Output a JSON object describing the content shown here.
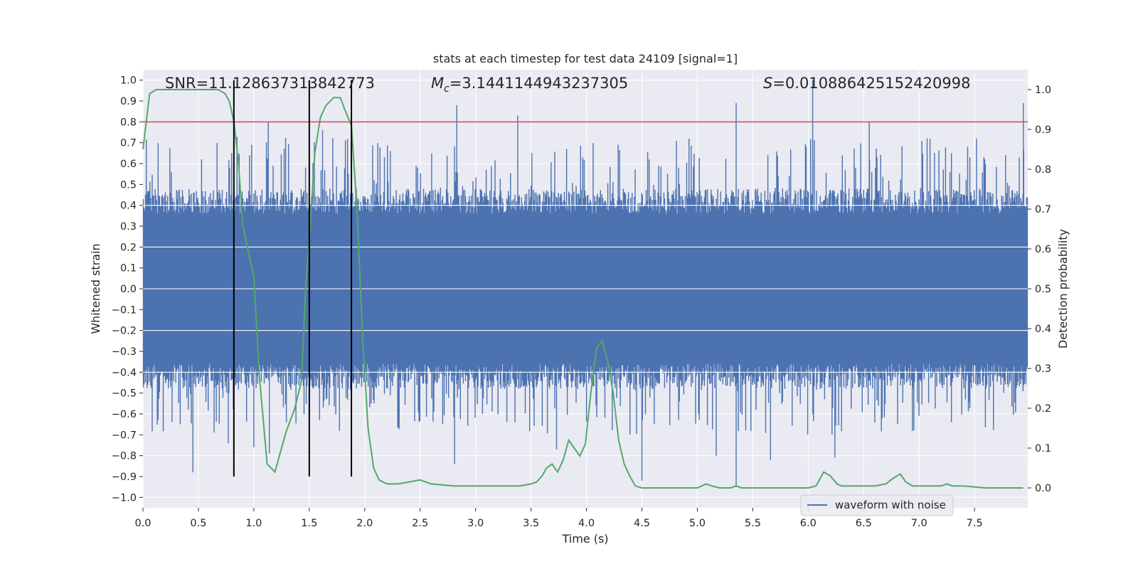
{
  "chart_data": {
    "type": "line",
    "title": "stats at each timestep for test data 24109 [signal=1]",
    "xlabel": "Time (s)",
    "ylabel_left": "Whitened strain",
    "ylabel_right": "Detection probability",
    "xlim": [
      0.0,
      7.98
    ],
    "ylim_left": [
      -1.05,
      1.05
    ],
    "ylim_right": [
      -0.05,
      1.05
    ],
    "x_ticks": [
      "0.0",
      "0.5",
      "1.0",
      "1.5",
      "2.0",
      "2.5",
      "3.0",
      "3.5",
      "4.0",
      "4.5",
      "5.0",
      "5.5",
      "6.0",
      "6.5",
      "7.0",
      "7.5"
    ],
    "y_left_ticks": [
      "1.0",
      "0.9",
      "0.8",
      "0.7",
      "0.6",
      "0.5",
      "0.4",
      "0.3",
      "0.2",
      "0.1",
      "0.0",
      "-0.1",
      "-0.2",
      "-0.3",
      "-0.4",
      "-0.5",
      "-0.6",
      "-0.7",
      "-0.8",
      "-0.9",
      "-1.0"
    ],
    "y_right_ticks": [
      "1.0",
      "0.9",
      "0.8",
      "0.7",
      "0.6",
      "0.5",
      "0.4",
      "0.3",
      "0.2",
      "0.1",
      "0.0"
    ],
    "grid": true,
    "legend_position": "lower-right",
    "annotations": {
      "snr": "SNR=11.128637313842773",
      "mc_label": "M",
      "mc_subscript": "c",
      "mc_value": "=3.1441144943237305",
      "s_label": "S",
      "s_value": "=0.010886425152420998"
    },
    "threshold": {
      "value": 0.8,
      "axis": "left",
      "color": "#c44e52"
    },
    "vlines": [
      0.82,
      1.5,
      1.88
    ],
    "waveform": {
      "name": "waveform with noise",
      "color": "#4c72b0",
      "envelope_typical": 0.42,
      "peak_spikes": [
        {
          "t": 0.45,
          "v": -0.88
        },
        {
          "t": 0.8,
          "v": 0.65
        },
        {
          "t": 0.77,
          "v": -0.74
        },
        {
          "t": 1.13,
          "v": 0.8
        },
        {
          "t": 1.14,
          "v": -0.79
        },
        {
          "t": 1.0,
          "v": -0.76
        },
        {
          "t": 1.62,
          "v": 0.76
        },
        {
          "t": 2.83,
          "v": 0.88
        },
        {
          "t": 2.81,
          "v": -0.84
        },
        {
          "t": 3.38,
          "v": 0.83
        },
        {
          "t": 3.73,
          "v": -0.77
        },
        {
          "t": 4.5,
          "v": -0.92
        },
        {
          "t": 5.35,
          "v": 0.89
        },
        {
          "t": 5.35,
          "v": -0.95
        },
        {
          "t": 5.17,
          "v": -0.8
        },
        {
          "t": 5.66,
          "v": -0.82
        },
        {
          "t": 6.04,
          "v": 1.0
        },
        {
          "t": 6.24,
          "v": -0.81
        },
        {
          "t": 6.55,
          "v": 0.8
        },
        {
          "t": 7.94,
          "v": 0.89
        },
        {
          "t": 7.78,
          "v": 0.64
        }
      ]
    },
    "probability": {
      "color": "#55a868",
      "axis": "right",
      "x": [
        0.0,
        0.06,
        0.12,
        0.2,
        0.3,
        0.4,
        0.5,
        0.6,
        0.68,
        0.74,
        0.78,
        0.82,
        0.86,
        0.9,
        0.96,
        1.0,
        1.05,
        1.12,
        1.19,
        1.29,
        1.37,
        1.43,
        1.47,
        1.5,
        1.55,
        1.6,
        1.65,
        1.72,
        1.78,
        1.82,
        1.88,
        1.93,
        1.98,
        2.03,
        2.08,
        2.13,
        2.2,
        2.3,
        2.4,
        2.5,
        2.6,
        2.8,
        3.0,
        3.2,
        3.3,
        3.4,
        3.5,
        3.55,
        3.6,
        3.64,
        3.69,
        3.74,
        3.79,
        3.84,
        3.89,
        3.94,
        3.99,
        4.04,
        4.09,
        4.14,
        4.19,
        4.24,
        4.29,
        4.34,
        4.39,
        4.44,
        4.5,
        4.6,
        4.8,
        5.0,
        5.08,
        5.13,
        5.2,
        5.3,
        5.35,
        5.4,
        5.5,
        5.7,
        5.85,
        6.0,
        6.07,
        6.14,
        6.2,
        6.26,
        6.3,
        6.4,
        6.5,
        6.6,
        6.7,
        6.77,
        6.83,
        6.88,
        6.94,
        7.0,
        7.07,
        7.12,
        7.2,
        7.25,
        7.3,
        7.4,
        7.6,
        7.8,
        7.94
      ],
      "values": [
        0.85,
        0.99,
        1.0,
        1.0,
        1.0,
        1.0,
        1.0,
        1.0,
        1.0,
        0.99,
        0.97,
        0.92,
        0.82,
        0.66,
        0.58,
        0.53,
        0.28,
        0.06,
        0.04,
        0.14,
        0.2,
        0.27,
        0.52,
        0.62,
        0.84,
        0.93,
        0.96,
        0.98,
        0.98,
        0.95,
        0.91,
        0.7,
        0.38,
        0.15,
        0.05,
        0.02,
        0.01,
        0.01,
        0.015,
        0.02,
        0.01,
        0.005,
        0.005,
        0.005,
        0.005,
        0.005,
        0.01,
        0.015,
        0.03,
        0.05,
        0.06,
        0.04,
        0.07,
        0.12,
        0.1,
        0.08,
        0.11,
        0.24,
        0.35,
        0.37,
        0.32,
        0.24,
        0.12,
        0.06,
        0.03,
        0.005,
        0.0,
        0.0,
        0.0,
        0.0,
        0.01,
        0.005,
        0.0,
        0.0,
        0.005,
        0.0,
        0.0,
        0.0,
        0.0,
        0.0,
        0.005,
        0.04,
        0.03,
        0.01,
        0.005,
        0.005,
        0.005,
        0.005,
        0.01,
        0.025,
        0.035,
        0.015,
        0.005,
        0.005,
        0.005,
        0.005,
        0.005,
        0.01,
        0.005,
        0.005,
        0.0,
        0.0,
        0.0
      ]
    }
  }
}
